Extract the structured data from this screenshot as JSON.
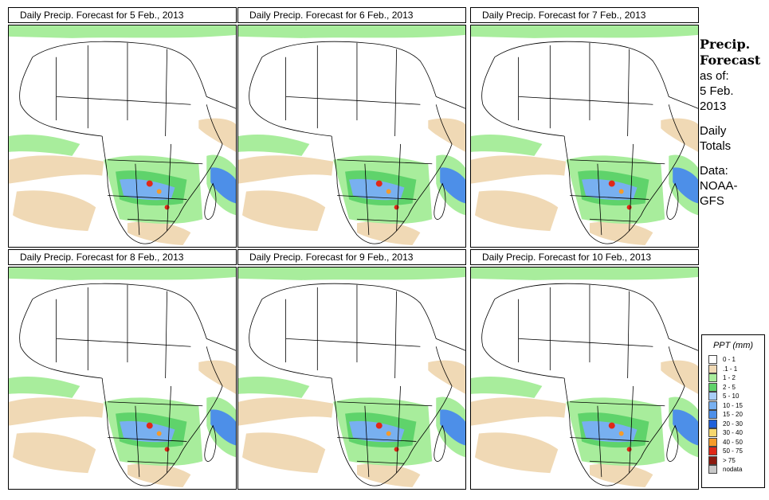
{
  "panels": [
    {
      "title": "Daily Precip. Forecast for  5 Feb., 2013"
    },
    {
      "title": "Daily Precip. Forecast for  6 Feb., 2013"
    },
    {
      "title": "Daily Precip. Forecast for  7 Feb., 2013"
    },
    {
      "title": "Daily Precip. Forecast for  8 Feb., 2013"
    },
    {
      "title": "Daily Precip. Forecast for  9 Feb., 2013"
    },
    {
      "title": "Daily Precip. Forecast for  10 Feb., 2013"
    }
  ],
  "side": {
    "heading1": "Precip.",
    "heading2": "Forecast",
    "asof": "as of:",
    "date1": "5 Feb.",
    "date2": "2013",
    "daily1": "Daily",
    "daily2": "Totals",
    "data1": "Data:",
    "data2": "NOAA-",
    "data3": "GFS"
  },
  "legend": {
    "title": "PPT (mm)",
    "items": [
      {
        "label": "0 - 1",
        "color": "#ffffff"
      },
      {
        "label": ".1 - 1",
        "color": "#f0d9b5"
      },
      {
        "label": "1 - 2",
        "color": "#a8ed9c"
      },
      {
        "label": "2 - 5",
        "color": "#5fd36b"
      },
      {
        "label": "5 - 10",
        "color": "#a8cdf7"
      },
      {
        "label": "10 - 15",
        "color": "#78b0f0"
      },
      {
        "label": "15 - 20",
        "color": "#4d8fe8"
      },
      {
        "label": "20 - 30",
        "color": "#2060d8"
      },
      {
        "label": "30 - 40",
        "color": "#f5d76e"
      },
      {
        "label": "40 - 50",
        "color": "#f59b2a"
      },
      {
        "label": "50 - 75",
        "color": "#e02818"
      },
      {
        "label": "> 75",
        "color": "#8b1a10"
      },
      {
        "label": "nodata",
        "color": "#c8c8c8"
      }
    ]
  }
}
